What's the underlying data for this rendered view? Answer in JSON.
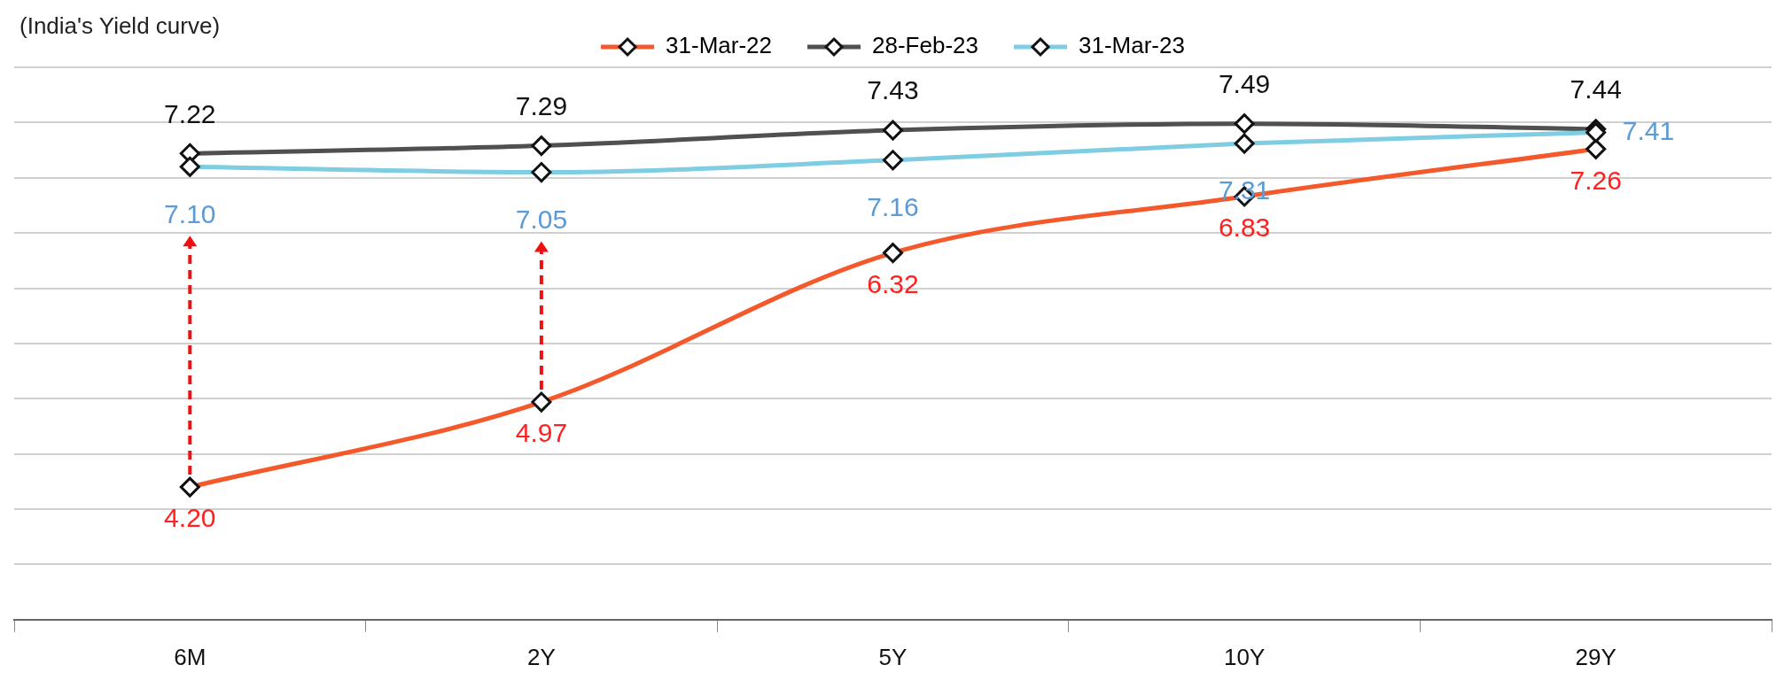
{
  "chart_data": {
    "type": "line",
    "title": "(India's Yield curve)",
    "categories": [
      "6M",
      "2Y",
      "5Y",
      "10Y",
      "29Y"
    ],
    "series": [
      {
        "name": "31-Mar-22",
        "color": "#f4592c",
        "values": [
          4.2,
          4.97,
          6.32,
          6.83,
          7.26
        ],
        "value_labels": [
          "4.20",
          "4.97",
          "6.32",
          "6.83",
          "7.26"
        ]
      },
      {
        "name": "28-Feb-23",
        "color": "#505050",
        "values": [
          7.22,
          7.29,
          7.43,
          7.49,
          7.44
        ],
        "value_labels": [
          "7.22",
          "7.29",
          "7.43",
          "7.49",
          "7.44"
        ]
      },
      {
        "name": "31-Mar-23",
        "color": "#7fcde3",
        "values": [
          7.1,
          7.05,
          7.16,
          7.31,
          7.41
        ],
        "value_labels": [
          "7.10",
          "7.05",
          "7.16",
          "7.31",
          "7.41"
        ]
      }
    ],
    "ylim": [
      3,
      8
    ],
    "yticks": [
      {
        "value": 3,
        "label": null
      },
      {
        "value": 3.5,
        "label": null
      },
      {
        "value": 4,
        "label": null
      },
      {
        "value": 4.5,
        "label": null
      },
      {
        "value": 5,
        "label": null
      },
      {
        "value": 5.5,
        "label": null
      },
      {
        "value": 6,
        "label": null
      },
      {
        "value": 6.5,
        "label": null
      },
      {
        "value": 7,
        "label": null
      },
      {
        "value": 7.5,
        "label": null
      },
      {
        "value": 8,
        "label": null
      }
    ],
    "tick_labels": "x",
    "grid": "y",
    "legend": "top",
    "marker": "diamond",
    "line_style": "solid"
  }
}
